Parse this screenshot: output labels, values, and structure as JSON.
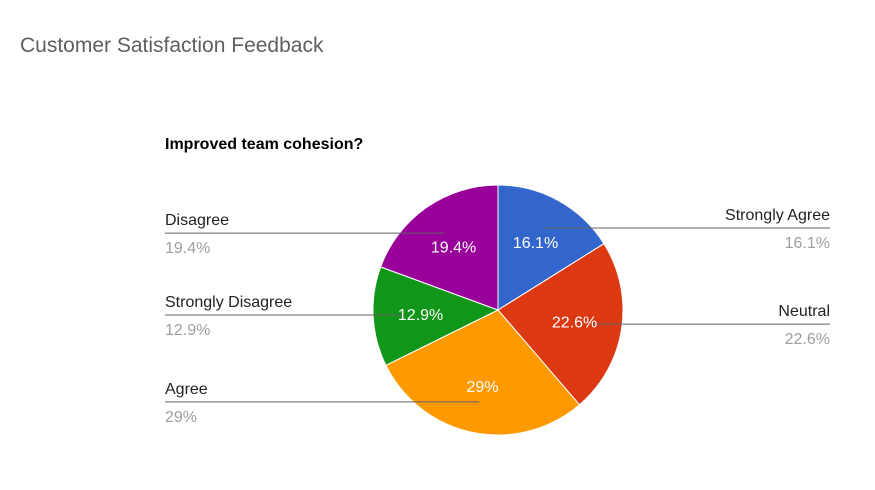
{
  "card": {
    "title": "Customer Satisfaction Feedback"
  },
  "chart_data": {
    "type": "pie",
    "title": "Improved team cohesion?",
    "start_angle_deg": 0,
    "direction": "clockwise",
    "slices": [
      {
        "label": "Strongly Agree",
        "value": 16.1,
        "value_label": "16.1%",
        "color": "#3366cc",
        "legend_side": "right"
      },
      {
        "label": "Neutral",
        "value": 22.6,
        "value_label": "22.6%",
        "color": "#dc3912",
        "legend_side": "right"
      },
      {
        "label": "Agree",
        "value": 29.0,
        "value_label": "29%",
        "color": "#ff9900",
        "legend_side": "left"
      },
      {
        "label": "Strongly Disagree",
        "value": 12.9,
        "value_label": "12.9%",
        "color": "#109618",
        "legend_side": "left"
      },
      {
        "label": "Disagree",
        "value": 19.4,
        "value_label": "19.4%",
        "color": "#990099",
        "legend_side": "left"
      }
    ]
  }
}
